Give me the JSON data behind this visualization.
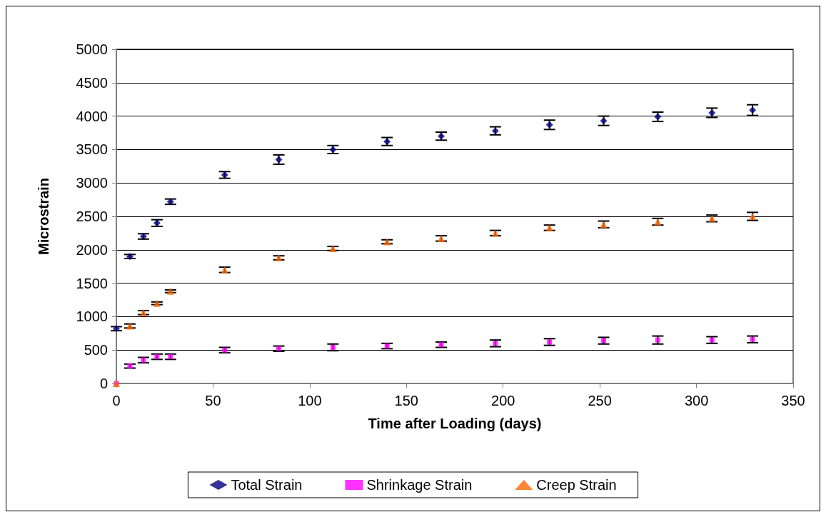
{
  "chart_data": {
    "type": "scatter",
    "xlabel": "Time after Loading (days)",
    "ylabel": "Microstrain",
    "xlim": [
      0,
      350
    ],
    "xticks": [
      0,
      50,
      100,
      150,
      200,
      250,
      300,
      350
    ],
    "ylim": [
      0,
      5000
    ],
    "yticks": [
      0,
      500,
      1000,
      1500,
      2000,
      2500,
      3000,
      3500,
      4000,
      4500,
      5000
    ],
    "grid": "y",
    "legend": "bottom",
    "x": [
      0,
      7,
      14,
      21,
      28,
      56,
      84,
      112,
      140,
      168,
      196,
      224,
      252,
      280,
      308,
      329
    ],
    "series": [
      {
        "name": "Total Strain",
        "color": "#000080",
        "marker": "diamond",
        "values": [
          820,
          1900,
          2200,
          2400,
          2720,
          3120,
          3350,
          3500,
          3620,
          3700,
          3780,
          3870,
          3930,
          3990,
          4050,
          4090
        ],
        "errors": [
          30,
          30,
          40,
          50,
          40,
          50,
          70,
          60,
          60,
          60,
          60,
          70,
          70,
          70,
          70,
          80
        ]
      },
      {
        "name": "Shrinkage Strain",
        "color": "#ff00ff",
        "marker": "square",
        "values": [
          0,
          260,
          350,
          400,
          400,
          500,
          520,
          540,
          560,
          580,
          600,
          620,
          640,
          650,
          650,
          660
        ],
        "errors": [
          null,
          30,
          40,
          40,
          40,
          40,
          40,
          50,
          40,
          40,
          50,
          50,
          50,
          60,
          50,
          50
        ]
      },
      {
        "name": "Creep Strain",
        "color": "#ff6600",
        "marker": "triangle",
        "values": [
          0,
          860,
          1060,
          1200,
          1380,
          1700,
          1880,
          2020,
          2120,
          2170,
          2250,
          2330,
          2380,
          2420,
          2470,
          2500
        ],
        "errors": [
          null,
          30,
          30,
          20,
          20,
          40,
          30,
          30,
          30,
          40,
          40,
          40,
          50,
          50,
          50,
          60
        ]
      }
    ]
  }
}
